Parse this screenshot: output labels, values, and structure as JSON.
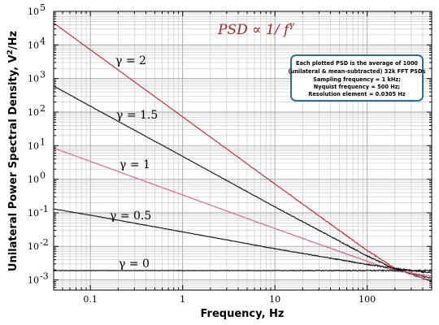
{
  "chart_data": {
    "type": "line",
    "title": "PSD ∝ 1/ f^γ",
    "xlabel": "Frequency, Hz",
    "ylabel": "Unilateral Power Spectral Density, V²/Hz",
    "x_scale": "log",
    "y_scale": "log",
    "xlim": [
      0.04,
      500
    ],
    "ylim": [
      0.0005,
      100000
    ],
    "x_ticks": [
      {
        "value": 0.1,
        "label": "0.1"
      },
      {
        "value": 1,
        "label": "1"
      },
      {
        "value": 10,
        "label": "10"
      },
      {
        "value": 100,
        "label": "100"
      }
    ],
    "y_ticks": [
      {
        "value": 0.001,
        "base": "10",
        "exp": "-3"
      },
      {
        "value": 0.01,
        "base": "10",
        "exp": "-2"
      },
      {
        "value": 0.1,
        "base": "10",
        "exp": "-1"
      },
      {
        "value": 1,
        "base": "10",
        "exp": "0"
      },
      {
        "value": 10,
        "base": "10",
        "exp": "1"
      },
      {
        "value": 100,
        "base": "10",
        "exp": "2"
      },
      {
        "value": 1000,
        "base": "10",
        "exp": "3"
      },
      {
        "value": 10000,
        "base": "10",
        "exp": "4"
      },
      {
        "value": 100000,
        "base": "10",
        "exp": "5"
      }
    ],
    "grid": true,
    "series": [
      {
        "name": "γ = 2",
        "gamma": 2,
        "color": "#c0282d",
        "points": [
          [
            0.04,
            45000
          ],
          [
            0.1,
            7200
          ],
          [
            1,
            72
          ],
          [
            10,
            0.72
          ],
          [
            100,
            0.0075
          ],
          [
            200,
            0.0022
          ],
          [
            500,
            0.0009
          ]
        ]
      },
      {
        "name": "γ = 1.5",
        "gamma": 1.5,
        "color": "#111111",
        "points": [
          [
            0.04,
            600
          ],
          [
            0.1,
            150
          ],
          [
            1,
            4.8
          ],
          [
            10,
            0.15
          ],
          [
            100,
            0.0052
          ],
          [
            200,
            0.0021
          ],
          [
            500,
            0.0011
          ]
        ]
      },
      {
        "name": "γ = 1",
        "gamma": 1,
        "color": "#d06a80",
        "points": [
          [
            0.04,
            8.5
          ],
          [
            0.1,
            3.4
          ],
          [
            1,
            0.34
          ],
          [
            10,
            0.034
          ],
          [
            100,
            0.0036
          ],
          [
            200,
            0.0019
          ],
          [
            500,
            0.0013
          ]
        ]
      },
      {
        "name": "γ = 0.5",
        "gamma": 0.5,
        "color": "#111111",
        "points": [
          [
            0.04,
            0.13
          ],
          [
            0.1,
            0.085
          ],
          [
            1,
            0.027
          ],
          [
            10,
            0.0085
          ],
          [
            100,
            0.0029
          ],
          [
            200,
            0.0022
          ],
          [
            500,
            0.0016
          ]
        ]
      },
      {
        "name": "γ = 0",
        "gamma": 0,
        "color": "#111111",
        "points": [
          [
            0.04,
            0.0019
          ],
          [
            0.1,
            0.0019
          ],
          [
            1,
            0.0019
          ],
          [
            10,
            0.0019
          ],
          [
            100,
            0.0019
          ],
          [
            500,
            0.0019
          ]
        ]
      }
    ]
  },
  "labels": {
    "psd_base": "PSD ∝ 1/ f",
    "psd_exp": "γ",
    "ylabel_main": "Unilateral Power Spectral Density, V",
    "ylabel_sup": "2",
    "ylabel_tail": "/Hz",
    "gamma_2": "γ = 2",
    "gamma_15": "γ = 1.5",
    "gamma_1": "γ = 1",
    "gamma_05": "γ = 0.5",
    "gamma_0": "γ = 0"
  },
  "info_box": {
    "lines": [
      "Each plotted PSD is the average of 1000",
      "(unilateral & mean-subtracted) 32k FFT PSDs",
      "Sampling frequency = 1 kHz;",
      "Nyquist frequency = 500 Hz;",
      "Resolution element = 0.0305 Hz"
    ],
    "border_color": "#2d6e9e"
  }
}
